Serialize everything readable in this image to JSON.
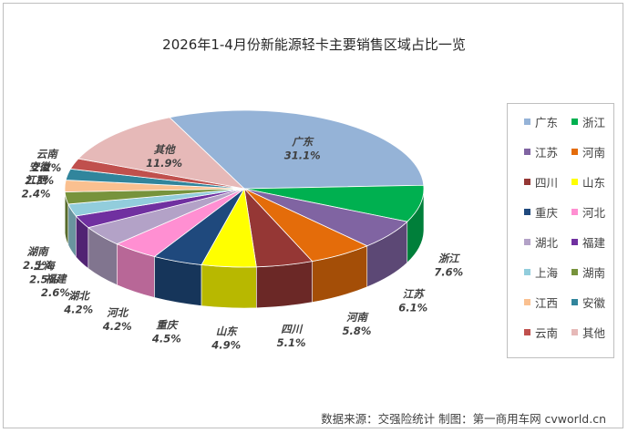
{
  "chart_data": {
    "type": "pie",
    "title": "2026年1-4月份新能源轻卡主要销售区域占比一览",
    "slices": [
      {
        "name": "广东",
        "value": 31.1,
        "label": "31.1%",
        "color": "#95b3d7"
      },
      {
        "name": "浙江",
        "value": 7.6,
        "label": "7.6%",
        "color": "#00b050"
      },
      {
        "name": "江苏",
        "value": 6.1,
        "label": "6.1%",
        "color": "#8064a2"
      },
      {
        "name": "河南",
        "value": 5.8,
        "label": "5.8%",
        "color": "#e46c0a"
      },
      {
        "name": "四川",
        "value": 5.1,
        "label": "5.1%",
        "color": "#953735"
      },
      {
        "name": "山东",
        "value": 4.9,
        "label": "4.9%",
        "color": "#ffff00"
      },
      {
        "name": "重庆",
        "value": 4.5,
        "label": "4.5%",
        "color": "#1f497d"
      },
      {
        "name": "河北",
        "value": 4.2,
        "label": "4.2%",
        "color": "#ff8fd2"
      },
      {
        "name": "湖北",
        "value": 4.2,
        "label": "4.2%",
        "color": "#b3a2c7"
      },
      {
        "name": "福建",
        "value": 2.6,
        "label": "2.6%",
        "color": "#7030a0"
      },
      {
        "name": "上海",
        "value": 2.5,
        "label": "2.5%",
        "color": "#92cddc"
      },
      {
        "name": "湖南",
        "value": 2.5,
        "label": "2.5%",
        "color": "#77933c"
      },
      {
        "name": "江西",
        "value": 2.4,
        "label": "2.4%",
        "color": "#fac090"
      },
      {
        "name": "安徽",
        "value": 2.3,
        "label": "2.3%",
        "color": "#31859c"
      },
      {
        "name": "云南",
        "value": 2.2,
        "label": "2.2%",
        "color": "#c0504d"
      },
      {
        "name": "其他",
        "value": 11.9,
        "label": "11.9%",
        "color": "#e6b9b8"
      }
    ],
    "legend_position": "right"
  },
  "source_text": "数据来源：交强险统计  制图：第一商用车网 cvworld.cn"
}
